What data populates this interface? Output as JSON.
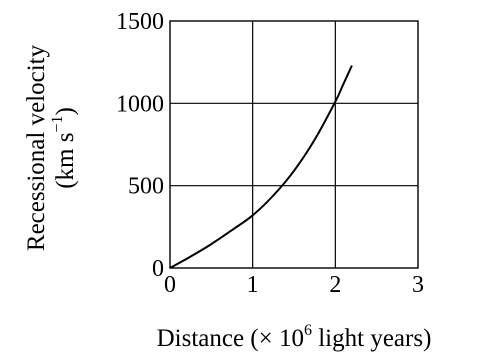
{
  "chart_data": {
    "type": "line",
    "title": "",
    "xlabel": {
      "prefix": "Distance (× 10",
      "superscript": "6",
      "suffix": " light years)"
    },
    "ylabel": {
      "line1": "Recessional velocity",
      "line2_prefix": "(km s",
      "line2_superscript": "−1",
      "line2_suffix": ")"
    },
    "xlim": [
      0,
      3
    ],
    "ylim": [
      0,
      1500
    ],
    "x_ticks": [
      0,
      1,
      2,
      3
    ],
    "y_ticks": [
      0,
      500,
      1000,
      1500
    ],
    "x_tick_labels": [
      "0",
      "1",
      "2",
      "3"
    ],
    "y_tick_labels": [
      "0",
      "500",
      "1000",
      "1500"
    ],
    "grid": true,
    "series": [
      {
        "x": [
          0,
          0.25,
          0.5,
          0.75,
          1.0,
          1.25,
          1.5,
          1.75,
          2.0,
          2.1,
          2.2
        ],
        "y": [
          0,
          70,
          145,
          230,
          320,
          440,
          590,
          780,
          1010,
          1120,
          1230
        ]
      }
    ],
    "line_color": "#000000"
  }
}
